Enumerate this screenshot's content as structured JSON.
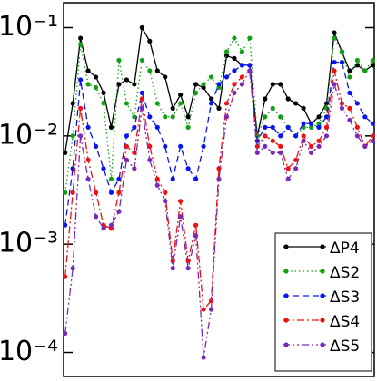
{
  "chart_data": {
    "type": "line",
    "log_y": true,
    "legend": "lower right",
    "ylim": [
      6e-05,
      0.17
    ],
    "yticks": [
      {
        "value": 0.1,
        "label": "10⁻¹"
      },
      {
        "value": 0.01,
        "label": "10⁻²"
      },
      {
        "value": 0.001,
        "label": "10⁻³"
      },
      {
        "value": 0.0001,
        "label": "10⁻⁴"
      }
    ],
    "x": [
      0,
      1,
      2,
      3,
      4,
      5,
      6,
      7,
      8,
      9,
      10,
      11,
      12,
      13,
      14,
      15,
      16,
      17,
      18,
      19,
      20,
      21,
      22,
      23,
      24,
      25,
      26,
      27,
      28,
      29,
      30,
      31,
      32,
      33,
      34,
      35,
      36,
      37,
      38,
      39,
      40
    ],
    "xlim": [
      -0.2,
      40.2
    ],
    "series": [
      {
        "name": "ΔP4",
        "color": "#000000",
        "dash": "solid",
        "values": [
          0.007,
          0.02,
          0.08,
          0.04,
          0.035,
          0.025,
          0.012,
          0.03,
          0.033,
          0.03,
          0.1,
          0.075,
          0.04,
          0.035,
          0.018,
          0.024,
          0.015,
          0.03,
          0.028,
          0.022,
          0.018,
          0.055,
          0.052,
          0.045,
          0.045,
          0.01,
          0.022,
          0.03,
          0.03,
          0.022,
          0.02,
          0.018,
          0.013,
          0.015,
          0.02,
          0.09,
          0.06,
          0.04,
          0.045,
          0.04,
          0.045
        ]
      },
      {
        "name": "ΔS2",
        "color": "#11a011",
        "dash": "dotted",
        "values": [
          0.003,
          0.01,
          0.07,
          0.03,
          0.028,
          0.02,
          0.004,
          0.05,
          0.02,
          0.015,
          0.05,
          0.04,
          0.02,
          0.015,
          0.015,
          0.02,
          0.012,
          0.025,
          0.03,
          0.035,
          0.028,
          0.06,
          0.08,
          0.06,
          0.08,
          0.01,
          0.015,
          0.018,
          0.015,
          0.012,
          0.01,
          0.012,
          0.012,
          0.013,
          0.018,
          0.08,
          0.06,
          0.035,
          0.05,
          0.04,
          0.05
        ]
      },
      {
        "name": "ΔS3",
        "color": "#0a14f0",
        "dash": "dashed",
        "values": [
          0.0015,
          0.005,
          0.033,
          0.012,
          0.008,
          0.005,
          0.003,
          0.004,
          0.01,
          0.012,
          0.025,
          0.015,
          0.012,
          0.008,
          0.004,
          0.008,
          0.005,
          0.004,
          0.008,
          0.02,
          0.03,
          0.035,
          0.04,
          0.045,
          0.045,
          0.009,
          0.012,
          0.012,
          0.01,
          0.012,
          0.01,
          0.013,
          0.013,
          0.012,
          0.015,
          0.048,
          0.048,
          0.025,
          0.02,
          0.015,
          0.013
        ]
      },
      {
        "name": "ΔS4",
        "color": "#f01010",
        "dash": "dashdot",
        "values": [
          0.0005,
          0.003,
          0.018,
          0.006,
          0.003,
          0.0015,
          0.0014,
          0.003,
          0.008,
          0.007,
          0.022,
          0.008,
          0.004,
          0.003,
          0.0007,
          0.0025,
          0.0007,
          0.0015,
          0.00025,
          0.0003,
          0.005,
          0.02,
          0.03,
          0.035,
          0.04,
          0.008,
          0.01,
          0.009,
          0.008,
          0.005,
          0.006,
          0.01,
          0.008,
          0.009,
          0.012,
          0.04,
          0.02,
          0.018,
          0.012,
          0.008,
          0.01
        ]
      },
      {
        "name": "ΔS5",
        "color": "#7a2ab8",
        "dash": "dashdotdot",
        "values": [
          0.00015,
          0.0006,
          0.01,
          0.004,
          0.0018,
          0.0014,
          0.0015,
          0.002,
          0.006,
          0.005,
          0.018,
          0.006,
          0.0035,
          0.0025,
          0.0006,
          0.0018,
          0.0006,
          0.0012,
          9e-05,
          0.00025,
          0.004,
          0.015,
          0.025,
          0.03,
          0.04,
          0.007,
          0.008,
          0.007,
          0.007,
          0.004,
          0.005,
          0.009,
          0.007,
          0.008,
          0.01,
          0.03,
          0.018,
          0.014,
          0.01,
          0.008,
          0.009
        ]
      }
    ]
  }
}
